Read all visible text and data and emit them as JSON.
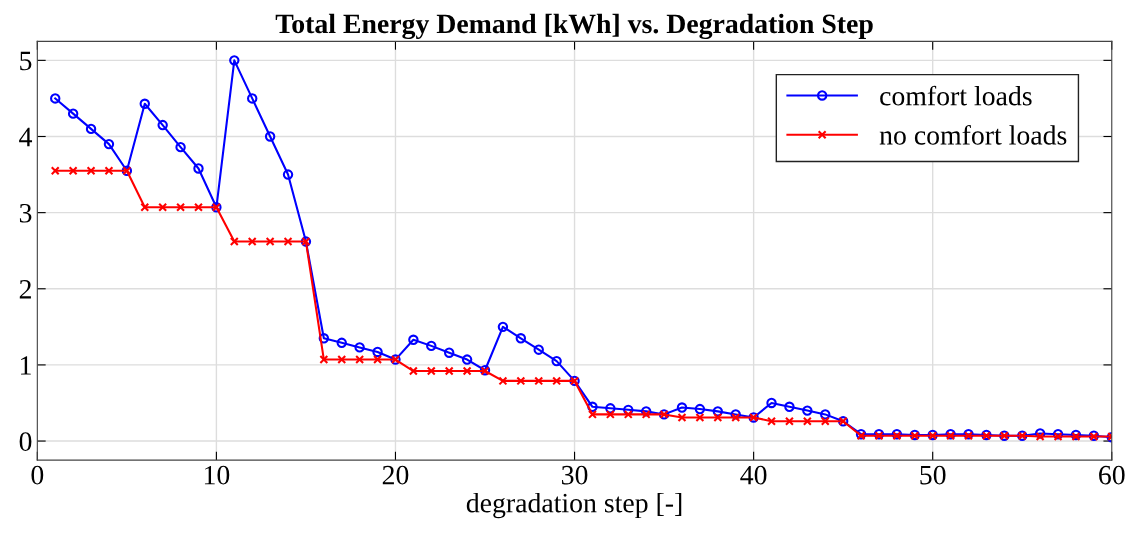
{
  "chart_data": {
    "type": "line",
    "title": "Total Energy Demand [kWh] vs. Degradation Step",
    "xlabel": "degradation step [-]",
    "x": [
      1,
      2,
      3,
      4,
      5,
      6,
      7,
      8,
      9,
      10,
      11,
      12,
      13,
      14,
      15,
      16,
      17,
      18,
      19,
      20,
      21,
      22,
      23,
      24,
      25,
      26,
      27,
      28,
      29,
      30,
      31,
      32,
      33,
      34,
      35,
      36,
      37,
      38,
      39,
      40,
      41,
      42,
      43,
      44,
      45,
      46,
      47,
      48,
      49,
      50,
      51,
      52,
      53,
      54,
      55,
      56,
      57,
      58,
      59,
      60
    ],
    "series": [
      {
        "name": "comfort loads",
        "color": "#0000ff",
        "marker": "circle",
        "values": [
          4.5,
          4.3,
          4.1,
          3.9,
          3.55,
          4.43,
          4.15,
          3.86,
          3.58,
          3.07,
          5.0,
          4.5,
          4.0,
          3.5,
          2.62,
          1.35,
          1.29,
          1.23,
          1.17,
          1.07,
          1.33,
          1.25,
          1.16,
          1.07,
          0.93,
          1.5,
          1.35,
          1.2,
          1.05,
          0.79,
          0.45,
          0.43,
          0.41,
          0.39,
          0.35,
          0.44,
          0.42,
          0.39,
          0.35,
          0.31,
          0.5,
          0.45,
          0.4,
          0.35,
          0.26,
          0.09,
          0.09,
          0.09,
          0.08,
          0.08,
          0.09,
          0.09,
          0.08,
          0.07,
          0.07,
          0.1,
          0.09,
          0.08,
          0.07,
          0.05
        ]
      },
      {
        "name": "no comfort loads",
        "color": "#ff0000",
        "marker": "cross",
        "values": [
          3.55,
          3.55,
          3.55,
          3.55,
          3.55,
          3.07,
          3.07,
          3.07,
          3.07,
          3.07,
          2.62,
          2.62,
          2.62,
          2.62,
          2.62,
          1.07,
          1.07,
          1.07,
          1.07,
          1.07,
          0.92,
          0.92,
          0.92,
          0.92,
          0.92,
          0.79,
          0.79,
          0.79,
          0.79,
          0.79,
          0.35,
          0.35,
          0.35,
          0.35,
          0.35,
          0.31,
          0.31,
          0.31,
          0.31,
          0.31,
          0.26,
          0.26,
          0.26,
          0.26,
          0.26,
          0.07,
          0.07,
          0.07,
          0.07,
          0.07,
          0.07,
          0.07,
          0.07,
          0.07,
          0.07,
          0.06,
          0.06,
          0.06,
          0.06,
          0.06
        ]
      }
    ],
    "xlim": [
      0,
      60
    ],
    "xticks": [
      0,
      10,
      20,
      30,
      40,
      50,
      60
    ],
    "ylim": [
      -0.25,
      5.25
    ],
    "yticks": [
      0,
      1,
      2,
      3,
      4,
      5
    ],
    "grid": true,
    "legend": "top right",
    "line_style": "solid"
  }
}
